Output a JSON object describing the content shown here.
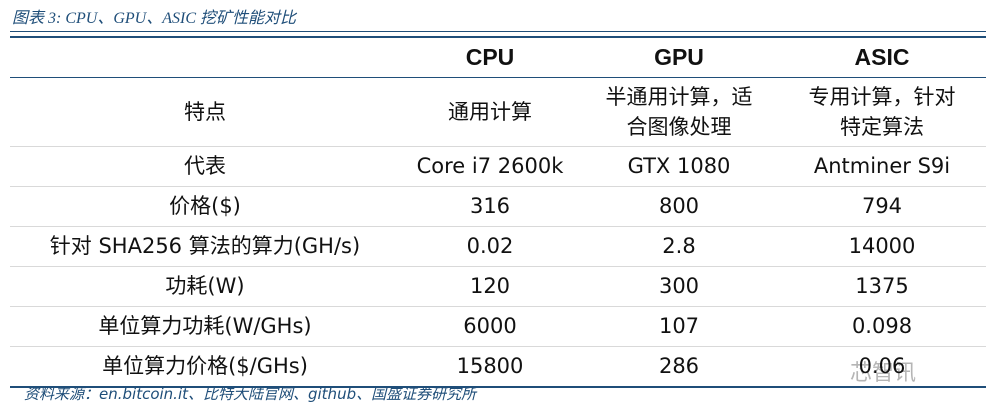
{
  "title": "图表 3: CPU、GPU、ASIC 挖矿性能对比",
  "table": {
    "columns": [
      "CPU",
      "GPU",
      "ASIC"
    ],
    "rows": [
      {
        "label": [
          "特点"
        ],
        "cells": [
          [
            "通用计算"
          ],
          [
            "半通用计算，适",
            "合图像处理"
          ],
          [
            "专用计算，针对",
            "特定算法"
          ]
        ]
      },
      {
        "label": [
          "代表"
        ],
        "cells": [
          [
            "Core i7 2600k"
          ],
          [
            "GTX 1080"
          ],
          [
            "Antminer S9i"
          ]
        ]
      },
      {
        "label": [
          "价格($)"
        ],
        "cells": [
          [
            "316"
          ],
          [
            "800"
          ],
          [
            "794"
          ]
        ]
      },
      {
        "label": [
          "针对 SHA256 算法的算力(GH/s)"
        ],
        "cells": [
          [
            "0.02"
          ],
          [
            "2.8"
          ],
          [
            "14000"
          ]
        ]
      },
      {
        "label": [
          "功耗(W)"
        ],
        "cells": [
          [
            "120"
          ],
          [
            "300"
          ],
          [
            "1375"
          ]
        ]
      },
      {
        "label": [
          "单位算力功耗(W/GHs)"
        ],
        "cells": [
          [
            "6000"
          ],
          [
            "107"
          ],
          [
            "0.098"
          ]
        ]
      },
      {
        "label": [
          "单位算力价格($/GHs)"
        ],
        "cells": [
          [
            "15800"
          ],
          [
            "286"
          ],
          [
            "0.06"
          ]
        ]
      }
    ]
  },
  "source": "资料来源：en.bitcoin.it、比特大陆官网、github、国盛证券研究所",
  "watermark": "芯智讯"
}
